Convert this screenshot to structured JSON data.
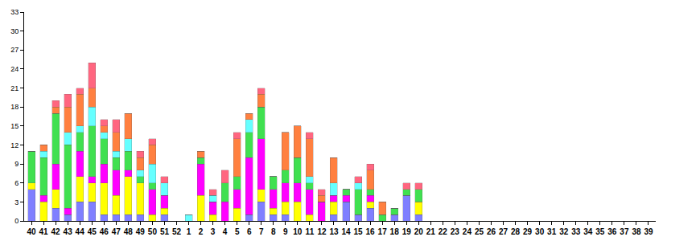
{
  "chart_data": {
    "type": "bar",
    "stacked": true,
    "grid": false,
    "categories": [
      "40",
      "41",
      "42",
      "43",
      "44",
      "45",
      "46",
      "47",
      "48",
      "49",
      "50",
      "51",
      "52",
      "1",
      "2",
      "3",
      "4",
      "5",
      "6",
      "7",
      "8",
      "9",
      "10",
      "11",
      "12",
      "13",
      "14",
      "15",
      "16",
      "17",
      "18",
      "19",
      "20",
      "21",
      "22",
      "23",
      "24",
      "25",
      "26",
      "27",
      "28",
      "29",
      "30",
      "31",
      "32",
      "33",
      "34",
      "35",
      "36",
      "37",
      "38",
      "39"
    ],
    "ylim": [
      0,
      33
    ],
    "yticks": [
      0,
      3,
      6,
      9,
      12,
      15,
      18,
      21,
      24,
      27,
      30,
      33
    ],
    "series": [
      {
        "color": "#7f7fff",
        "values": [
          5,
          0,
          2,
          1,
          3,
          3,
          1,
          1,
          1,
          1,
          0,
          1,
          0,
          0,
          0,
          0,
          0,
          0,
          1,
          3,
          1,
          1,
          0,
          0,
          0,
          1,
          3,
          1,
          2,
          0,
          1,
          4,
          1,
          0,
          0,
          0,
          0,
          0,
          0,
          0,
          0,
          0,
          0,
          0,
          0,
          0,
          0,
          0,
          0,
          0,
          0,
          0
        ]
      },
      {
        "color": "#ffff00",
        "values": [
          1,
          3,
          3,
          0,
          4,
          3,
          5,
          3,
          6,
          5,
          1,
          1,
          0,
          0,
          4,
          1,
          0,
          2,
          0,
          2,
          1,
          2,
          3,
          1,
          0,
          2,
          0,
          0,
          1,
          0,
          0,
          0,
          2,
          0,
          0,
          0,
          0,
          0,
          0,
          0,
          0,
          0,
          0,
          0,
          0,
          0,
          0,
          0,
          0,
          0,
          0,
          0
        ]
      },
      {
        "color": "#ff00ff",
        "values": [
          0,
          1,
          4,
          1,
          4,
          1,
          3,
          4,
          1,
          0,
          4,
          2,
          0,
          0,
          5,
          2,
          3,
          3,
          9,
          8,
          3,
          3,
          3,
          4,
          3,
          1,
          1,
          0,
          1,
          0,
          0,
          0,
          0,
          0,
          0,
          0,
          0,
          0,
          0,
          0,
          0,
          0,
          0,
          0,
          0,
          0,
          0,
          0,
          0,
          0,
          0,
          0
        ]
      },
      {
        "color": "#40e050",
        "values": [
          5,
          6,
          8,
          10,
          3,
          8,
          4,
          2,
          3,
          1,
          1,
          0,
          0,
          0,
          1,
          0,
          3,
          2,
          4,
          5,
          2,
          2,
          4,
          1,
          0,
          0,
          1,
          4,
          1,
          1,
          1,
          1,
          2,
          0,
          0,
          0,
          0,
          0,
          0,
          0,
          0,
          0,
          0,
          0,
          0,
          0,
          0,
          0,
          0,
          0,
          0,
          0
        ]
      },
      {
        "color": "#66ffff",
        "values": [
          0,
          1,
          0,
          2,
          1,
          3,
          1,
          1,
          2,
          1,
          3,
          2,
          0,
          1,
          0,
          1,
          0,
          0,
          2,
          0,
          0,
          0,
          0,
          1,
          0,
          2,
          0,
          1,
          0,
          0,
          0,
          0,
          0,
          0,
          0,
          0,
          0,
          0,
          0,
          0,
          0,
          0,
          0,
          0,
          0,
          0,
          0,
          0,
          0,
          0,
          0,
          0
        ]
      },
      {
        "color": "#ff8040",
        "values": [
          0,
          1,
          1,
          4,
          5,
          3,
          1,
          3,
          4,
          2,
          3,
          0,
          0,
          0,
          1,
          0,
          0,
          6,
          1,
          2,
          0,
          6,
          5,
          6,
          1,
          4,
          0,
          0,
          3,
          2,
          0,
          0,
          0,
          0,
          0,
          0,
          0,
          0,
          0,
          0,
          0,
          0,
          0,
          0,
          0,
          0,
          0,
          0,
          0,
          0,
          0,
          0
        ]
      },
      {
        "color": "#ff6680",
        "values": [
          0,
          0,
          1,
          2,
          1,
          4,
          1,
          2,
          0,
          1,
          1,
          1,
          0,
          0,
          0,
          1,
          2,
          1,
          0,
          1,
          0,
          0,
          0,
          1,
          1,
          0,
          0,
          1,
          1,
          0,
          0,
          1,
          1,
          0,
          0,
          0,
          0,
          0,
          0,
          0,
          0,
          0,
          0,
          0,
          0,
          0,
          0,
          0,
          0,
          0,
          0,
          0
        ]
      }
    ]
  }
}
